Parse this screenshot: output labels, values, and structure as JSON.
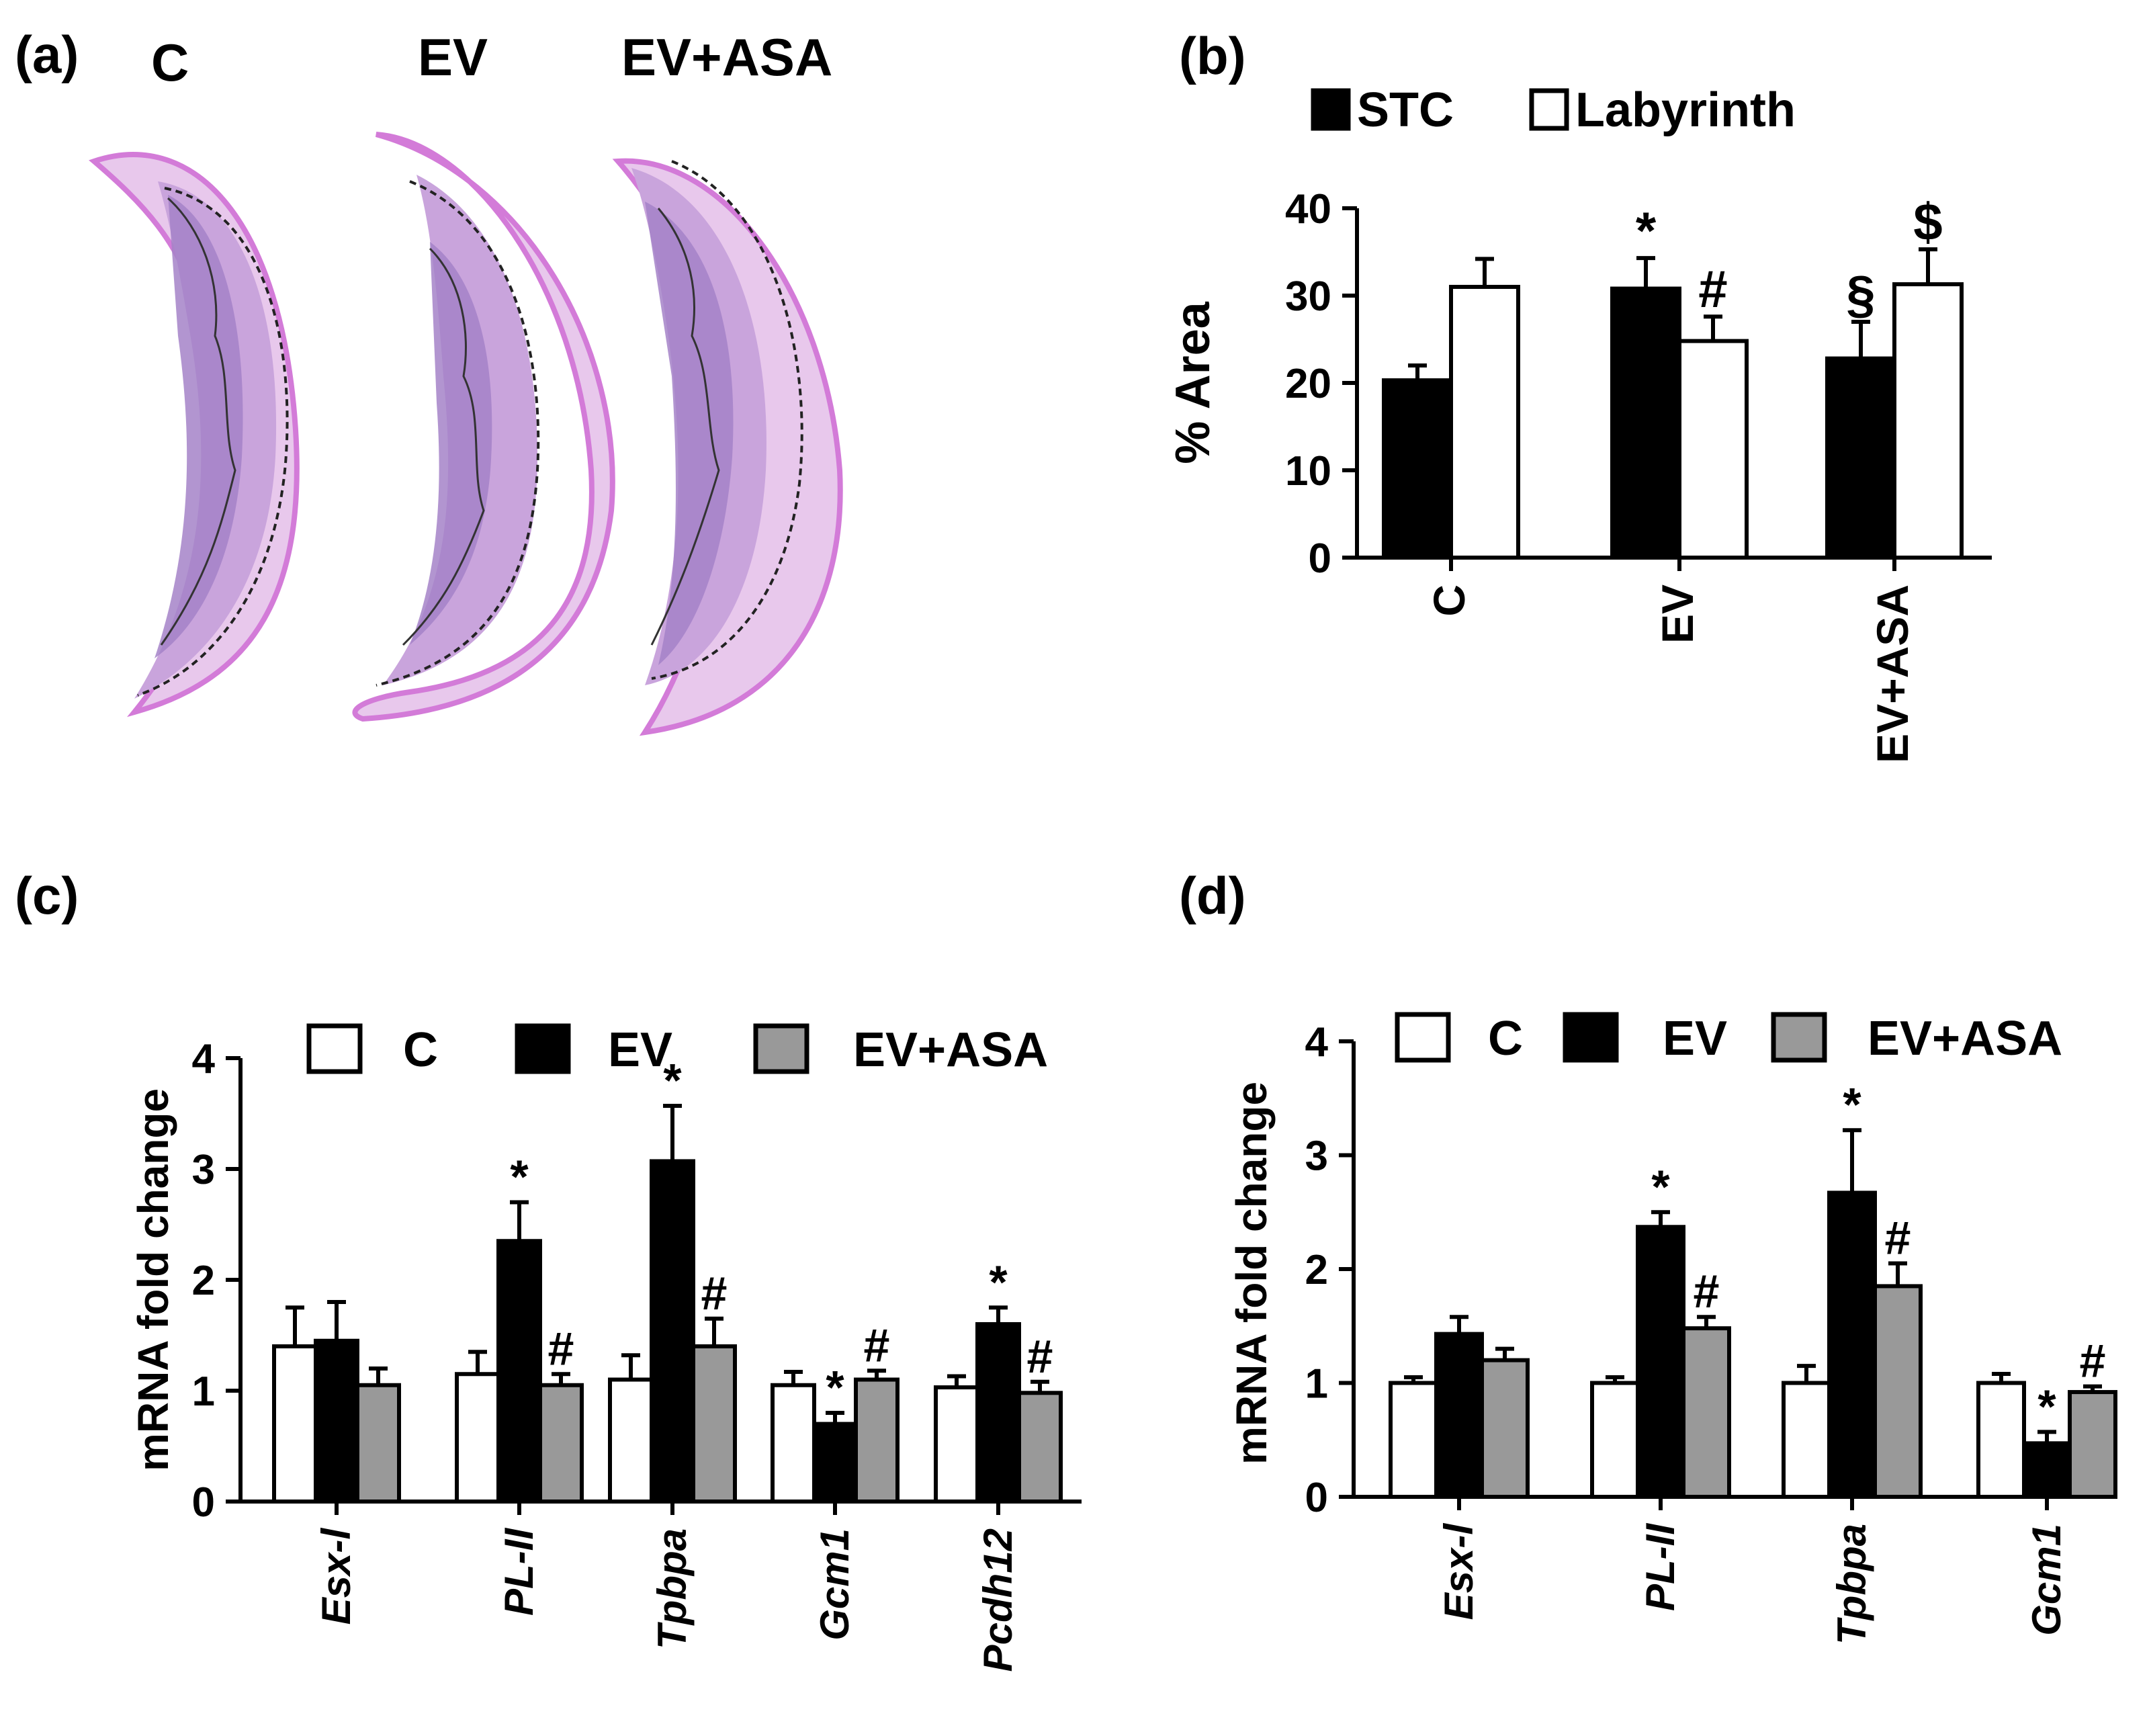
{
  "panels": {
    "a": {
      "label": "(a)",
      "group_labels": [
        "C",
        "EV",
        "EV+ASA"
      ]
    }
  },
  "colors": {
    "black": "#000000",
    "white": "#ffffff",
    "gray": "#999999",
    "tissue_fill": "#c9a4dc",
    "tissue_inner": "#a583c8",
    "tissue_edge": "#d37bd8",
    "tissue_pale": "#e8c8ec"
  },
  "chart_data": [
    {
      "panel_label": "(b)",
      "type": "bar",
      "title": "",
      "xlabel": "",
      "ylabel": "% Area",
      "ylim": [
        0,
        40
      ],
      "yticks": [
        "0",
        "10",
        "20",
        "30",
        "40"
      ],
      "categories": [
        "C",
        "EV",
        "EV+ASA"
      ],
      "legend": [
        "STC",
        "Labyrinth"
      ],
      "legend_position": "top",
      "series": [
        {
          "name": "STC",
          "color": "#000000",
          "values": [
            20.3,
            30.8,
            22.8
          ],
          "errors": [
            1.7,
            3.5,
            4.2
          ],
          "annotations": [
            "",
            "*",
            "§"
          ]
        },
        {
          "name": "Labyrinth",
          "color": "#ffffff",
          "values": [
            31.0,
            24.8,
            31.3
          ],
          "errors": [
            3.2,
            2.8,
            4.0
          ],
          "annotations": [
            "",
            "#",
            "$"
          ]
        }
      ]
    },
    {
      "panel_label": "(c)",
      "type": "bar",
      "title": "",
      "xlabel": "",
      "ylabel": "mRNA fold change",
      "ylim": [
        0,
        4
      ],
      "yticks": [
        "0",
        "1",
        "2",
        "3",
        "4"
      ],
      "categories": [
        "Esx-l",
        "PL-II",
        "Tpbpa",
        "Gcm1",
        "Pcdh12"
      ],
      "legend": [
        "C",
        "EV",
        "EV+ASA"
      ],
      "legend_position": "top",
      "series": [
        {
          "name": "C",
          "color": "#ffffff",
          "values": [
            1.4,
            1.15,
            1.1,
            1.05,
            1.03
          ],
          "errors": [
            0.35,
            0.2,
            0.22,
            0.12,
            0.1
          ],
          "annotations": [
            "",
            "",
            "",
            "",
            ""
          ]
        },
        {
          "name": "EV",
          "color": "#000000",
          "values": [
            1.45,
            2.35,
            3.07,
            0.7,
            1.6
          ],
          "errors": [
            0.35,
            0.35,
            0.5,
            0.1,
            0.15
          ],
          "annotations": [
            "",
            "*",
            "*",
            "*",
            "*"
          ]
        },
        {
          "name": "EV+ASA",
          "color": "#999999",
          "values": [
            1.05,
            1.05,
            1.4,
            1.1,
            0.98
          ],
          "errors": [
            0.15,
            0.1,
            0.25,
            0.08,
            0.1
          ],
          "annotations": [
            "",
            "#",
            "#",
            "#",
            "#"
          ]
        }
      ]
    },
    {
      "panel_label": "(d)",
      "type": "bar",
      "title": "",
      "xlabel": "",
      "ylabel": "mRNA fold change",
      "ylim": [
        0,
        4
      ],
      "yticks": [
        "0",
        "1",
        "2",
        "3",
        "4"
      ],
      "categories": [
        "Esx-l",
        "PL-II",
        "Tpbpa",
        "Gcm1"
      ],
      "legend": [
        "C",
        "EV",
        "EV+ASA"
      ],
      "legend_position": "top",
      "series": [
        {
          "name": "C",
          "color": "#ffffff",
          "values": [
            1.0,
            1.0,
            1.0,
            1.0
          ],
          "errors": [
            0.05,
            0.05,
            0.15,
            0.08
          ],
          "annotations": [
            "",
            "",
            "",
            ""
          ]
        },
        {
          "name": "EV",
          "color": "#000000",
          "values": [
            1.43,
            2.37,
            2.67,
            0.47
          ],
          "errors": [
            0.15,
            0.13,
            0.55,
            0.1
          ],
          "annotations": [
            "",
            "*",
            "*",
            "*"
          ]
        },
        {
          "name": "EV+ASA",
          "color": "#999999",
          "values": [
            1.2,
            1.48,
            1.85,
            0.92
          ],
          "errors": [
            0.1,
            0.1,
            0.2,
            0.05
          ],
          "annotations": [
            "",
            "#",
            "#",
            "#"
          ]
        }
      ]
    }
  ]
}
